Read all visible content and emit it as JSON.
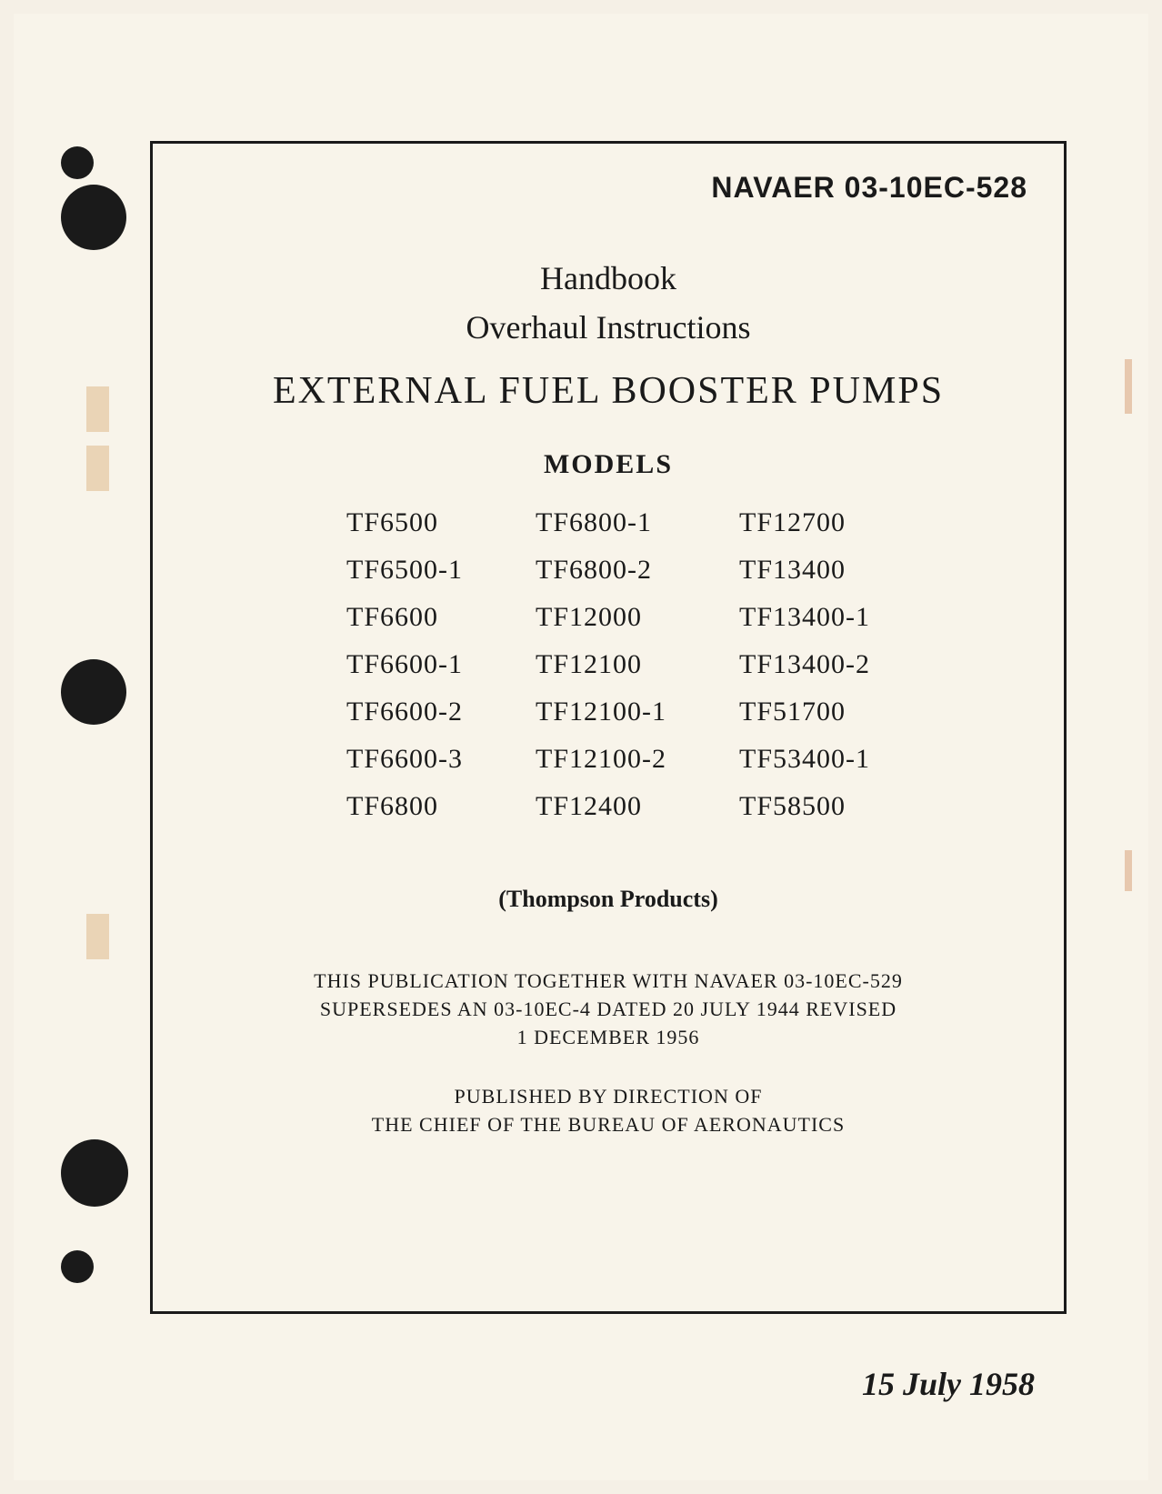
{
  "document_number": "NAVAER 03-10EC-528",
  "header": {
    "line1": "Handbook",
    "line2": "Overhaul Instructions",
    "title": "EXTERNAL FUEL BOOSTER PUMPS",
    "models_label": "MODELS"
  },
  "models": {
    "column1": [
      "TF6500",
      "TF6500-1",
      "TF6600",
      "TF6600-1",
      "TF6600-2",
      "TF6600-3",
      "TF6800"
    ],
    "column2": [
      "TF6800-1",
      "TF6800-2",
      "TF12000",
      "TF12100",
      "TF12100-1",
      "TF12100-2",
      "TF12400"
    ],
    "column3": [
      "TF12700",
      "TF13400",
      "TF13400-1",
      "TF13400-2",
      "TF51700",
      "TF53400-1",
      "TF58500"
    ]
  },
  "manufacturer": "(Thompson Products)",
  "publication_note": {
    "line1": "THIS PUBLICATION TOGETHER WITH NAVAER 03-10EC-529",
    "line2": "SUPERSEDES AN 03-10EC-4 DATED 20 JULY 1944 REVISED",
    "line3": "1 DECEMBER 1956"
  },
  "publisher": {
    "line1": "PUBLISHED BY DIRECTION OF",
    "line2": "THE CHIEF OF THE BUREAU OF AERONAUTICS"
  },
  "date": "15 July 1958",
  "styling": {
    "page_background": "#f5f0e6",
    "inner_background": "#f8f4ea",
    "text_color": "#1a1a1a",
    "border_color": "#1a1a1a",
    "border_width": 3,
    "punch_hole_color": "#1a1a1a",
    "stain_color": "#c97540",
    "binding_mark_color": "#d4a56a",
    "doc_number_fontsize": 32,
    "title_fontsize": 42,
    "subtitle_fontsize": 36,
    "models_header_fontsize": 30,
    "model_item_fontsize": 30,
    "manufacturer_fontsize": 26,
    "note_fontsize": 22,
    "date_fontsize": 36
  }
}
